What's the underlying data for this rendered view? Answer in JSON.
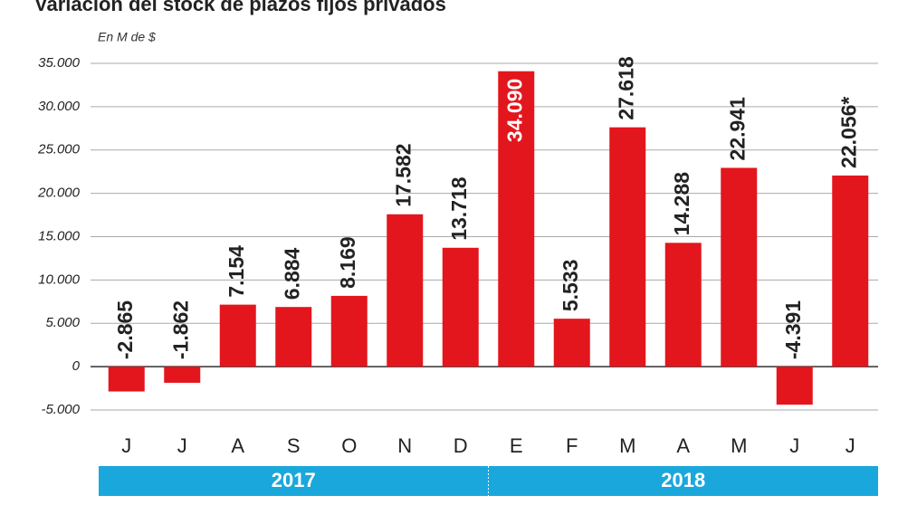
{
  "chart_data": {
    "type": "bar",
    "title": "Variación del stock de plazos fijos privados",
    "subtitle": "En M de $",
    "categories": [
      "J",
      "J",
      "A",
      "S",
      "O",
      "N",
      "D",
      "E",
      "F",
      "M",
      "A",
      "M",
      "J",
      "J"
    ],
    "values": [
      -2865,
      -1862,
      7154,
      6884,
      8169,
      17582,
      13718,
      34090,
      5533,
      27618,
      14288,
      22941,
      -4391,
      22056
    ],
    "value_labels": [
      "-2.865",
      "-1.862",
      "7.154",
      "6.884",
      "8.169",
      "17.582",
      "13.718",
      "34.090",
      "5.533",
      "27.618",
      "14.288",
      "22.941",
      "-4.391",
      "22.056*"
    ],
    "color": "#e3161d",
    "ylim": [
      -5000,
      35000
    ],
    "yticks": [
      {
        "value": -5000,
        "label": "-5.000"
      },
      0,
      {
        "value": 5000,
        "label": "5.000"
      },
      {
        "value": 10000,
        "label": "10.000"
      },
      {
        "value": 15000,
        "label": "15.000"
      },
      {
        "value": 20000,
        "label": "20.000"
      },
      {
        "value": 25000,
        "label": "25.000"
      },
      {
        "value": 30000,
        "label": "30.000"
      },
      {
        "value": 35000,
        "label": "35.000"
      }
    ],
    "grid": true,
    "year_labels": [
      "2017",
      "2018"
    ],
    "year_band_color": "#1aa7dc"
  }
}
